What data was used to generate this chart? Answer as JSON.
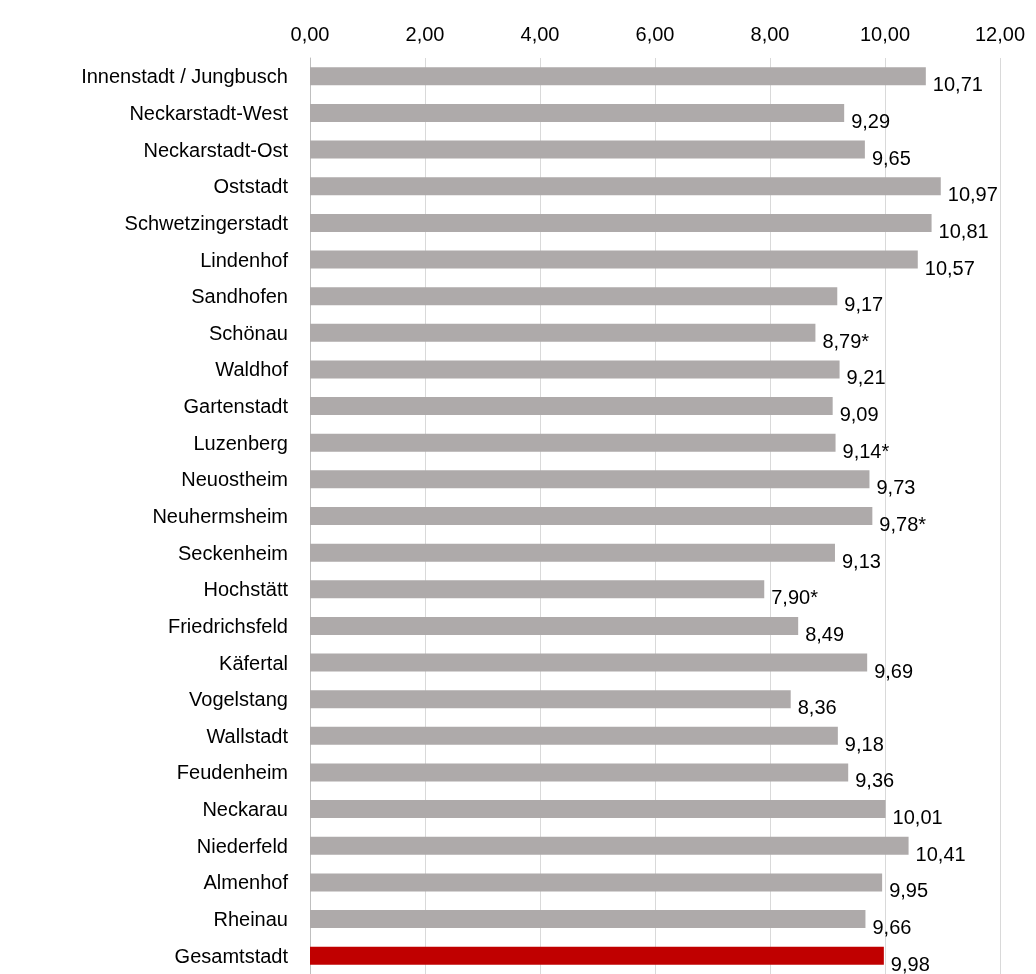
{
  "chart_data": {
    "type": "bar",
    "orientation": "horizontal",
    "categories": [
      "Innenstadt / Jungbusch",
      "Neckarstadt-West",
      "Neckarstadt-Ost",
      "Oststadt",
      "Schwetzingerstadt",
      "Lindenhof",
      "Sandhofen",
      "Schönau",
      "Waldhof",
      "Gartenstadt",
      "Luzenberg",
      "Neuostheim",
      "Neuhermsheim",
      "Seckenheim",
      "Hochstätt",
      "Friedrichsfeld",
      "Käfertal",
      "Vogelstang",
      "Wallstadt",
      "Feudenheim",
      "Neckarau",
      "Niederfeld",
      "Almenhof",
      "Rheinau",
      "Gesamtstadt"
    ],
    "values": [
      10.71,
      9.29,
      9.65,
      10.97,
      10.81,
      10.57,
      9.17,
      8.79,
      9.21,
      9.09,
      9.14,
      9.73,
      9.78,
      9.13,
      7.9,
      8.49,
      9.69,
      8.36,
      9.18,
      9.36,
      10.01,
      10.41,
      9.95,
      9.66,
      9.98
    ],
    "value_labels": [
      "10,71",
      "9,29",
      "9,65",
      "10,97",
      "10,81",
      "10,57",
      "9,17",
      "8,79*",
      "9,21",
      "9,09",
      "9,14*",
      "9,73",
      "9,78*",
      "9,13",
      "7,90*",
      "8,49",
      "9,69",
      "8,36",
      "9,18",
      "9,36",
      "10,01",
      "10,41",
      "9,95",
      "9,66",
      "9,98"
    ],
    "colors": [
      "#aeaaaa",
      "#aeaaaa",
      "#aeaaaa",
      "#aeaaaa",
      "#aeaaaa",
      "#aeaaaa",
      "#aeaaaa",
      "#aeaaaa",
      "#aeaaaa",
      "#aeaaaa",
      "#aeaaaa",
      "#aeaaaa",
      "#aeaaaa",
      "#aeaaaa",
      "#aeaaaa",
      "#aeaaaa",
      "#aeaaaa",
      "#aeaaaa",
      "#aeaaaa",
      "#aeaaaa",
      "#aeaaaa",
      "#aeaaaa",
      "#aeaaaa",
      "#aeaaaa",
      "#c00000"
    ],
    "xlim": [
      0,
      12
    ],
    "xticks": [
      {
        "value": 0,
        "label": "0,00"
      },
      {
        "value": 2,
        "label": "2,00"
      },
      {
        "value": 4,
        "label": "4,00"
      },
      {
        "value": 6,
        "label": "6,00"
      },
      {
        "value": 8,
        "label": "8,00"
      },
      {
        "value": 10,
        "label": "10,00"
      },
      {
        "value": 12,
        "label": "12,00"
      }
    ],
    "grid": "x"
  }
}
